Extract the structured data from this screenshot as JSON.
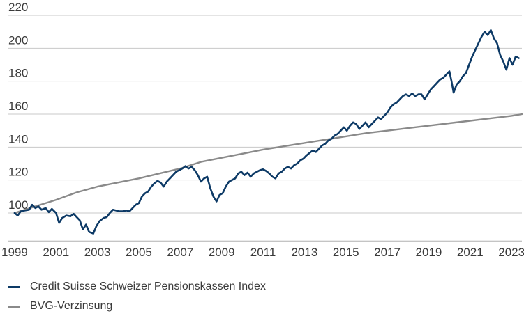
{
  "chart_data": {
    "type": "line",
    "title": "",
    "xlabel": "",
    "ylabel": "",
    "xlim": [
      1998.7,
      2023.5
    ],
    "ylim": [
      78,
      230
    ],
    "grid": true,
    "legend_placement": "bottom-left",
    "y_ticks": [
      "100",
      "120",
      "140",
      "160",
      "180",
      "200",
      "220"
    ],
    "x_ticks": [
      "1999",
      "2001",
      "2003",
      "2005",
      "2007",
      "2009",
      "2011",
      "2013",
      "2015",
      "2017",
      "2019",
      "2021",
      "2023"
    ],
    "series": [
      {
        "name": "Credit Suisse Schweizer Pensionskassen Index",
        "color": "#0d3a66",
        "points": [
          [
            1999.0,
            100
          ],
          [
            1999.15,
            98.5
          ],
          [
            1999.3,
            101
          ],
          [
            1999.5,
            101.5
          ],
          [
            1999.7,
            102
          ],
          [
            1999.85,
            105
          ],
          [
            2000.0,
            103
          ],
          [
            2000.15,
            104
          ],
          [
            2000.3,
            102
          ],
          [
            2000.5,
            103
          ],
          [
            2000.65,
            100.5
          ],
          [
            2000.8,
            102.5
          ],
          [
            2001.0,
            100
          ],
          [
            2001.15,
            94
          ],
          [
            2001.3,
            97
          ],
          [
            2001.5,
            98.5
          ],
          [
            2001.7,
            98
          ],
          [
            2001.85,
            99.5
          ],
          [
            2002.0,
            97.5
          ],
          [
            2002.15,
            95.5
          ],
          [
            2002.3,
            90
          ],
          [
            2002.45,
            93
          ],
          [
            2002.6,
            88.5
          ],
          [
            2002.8,
            87.5
          ],
          [
            2002.95,
            92
          ],
          [
            2003.1,
            95
          ],
          [
            2003.3,
            97
          ],
          [
            2003.45,
            97.5
          ],
          [
            2003.6,
            100
          ],
          [
            2003.75,
            102
          ],
          [
            2003.9,
            101.5
          ],
          [
            2004.05,
            101
          ],
          [
            2004.2,
            101
          ],
          [
            2004.4,
            101.5
          ],
          [
            2004.55,
            101
          ],
          [
            2004.7,
            103
          ],
          [
            2004.85,
            105
          ],
          [
            2005.0,
            106
          ],
          [
            2005.15,
            110
          ],
          [
            2005.3,
            112
          ],
          [
            2005.45,
            113
          ],
          [
            2005.6,
            116
          ],
          [
            2005.75,
            118
          ],
          [
            2005.9,
            119.5
          ],
          [
            2006.05,
            118.5
          ],
          [
            2006.2,
            116
          ],
          [
            2006.35,
            119
          ],
          [
            2006.5,
            121
          ],
          [
            2006.65,
            123
          ],
          [
            2006.8,
            125
          ],
          [
            2006.95,
            126
          ],
          [
            2007.1,
            127
          ],
          [
            2007.25,
            128.5
          ],
          [
            2007.4,
            127
          ],
          [
            2007.55,
            128
          ],
          [
            2007.7,
            126
          ],
          [
            2007.85,
            123
          ],
          [
            2008.0,
            119
          ],
          [
            2008.15,
            121
          ],
          [
            2008.3,
            122
          ],
          [
            2008.45,
            115
          ],
          [
            2008.6,
            110
          ],
          [
            2008.75,
            107
          ],
          [
            2008.9,
            111
          ],
          [
            2009.05,
            112
          ],
          [
            2009.2,
            116
          ],
          [
            2009.35,
            119
          ],
          [
            2009.5,
            120
          ],
          [
            2009.65,
            121
          ],
          [
            2009.8,
            124
          ],
          [
            2009.95,
            125
          ],
          [
            2010.1,
            123
          ],
          [
            2010.25,
            124.5
          ],
          [
            2010.4,
            122
          ],
          [
            2010.55,
            124
          ],
          [
            2010.7,
            125
          ],
          [
            2010.85,
            126
          ],
          [
            2011.0,
            126.5
          ],
          [
            2011.15,
            125.5
          ],
          [
            2011.3,
            124
          ],
          [
            2011.45,
            122
          ],
          [
            2011.6,
            121
          ],
          [
            2011.75,
            124
          ],
          [
            2011.9,
            125
          ],
          [
            2012.05,
            127
          ],
          [
            2012.2,
            128
          ],
          [
            2012.35,
            127
          ],
          [
            2012.5,
            129
          ],
          [
            2012.65,
            130
          ],
          [
            2012.8,
            132
          ],
          [
            2012.95,
            133
          ],
          [
            2013.1,
            135
          ],
          [
            2013.25,
            136.5
          ],
          [
            2013.4,
            138
          ],
          [
            2013.55,
            137
          ],
          [
            2013.7,
            139
          ],
          [
            2013.85,
            141
          ],
          [
            2014.0,
            142
          ],
          [
            2014.15,
            144
          ],
          [
            2014.3,
            145
          ],
          [
            2014.45,
            147
          ],
          [
            2014.6,
            148
          ],
          [
            2014.75,
            150
          ],
          [
            2014.9,
            152
          ],
          [
            2015.05,
            150
          ],
          [
            2015.2,
            153
          ],
          [
            2015.35,
            155
          ],
          [
            2015.5,
            154
          ],
          [
            2015.65,
            151
          ],
          [
            2015.8,
            153
          ],
          [
            2015.95,
            155
          ],
          [
            2016.1,
            152
          ],
          [
            2016.25,
            154
          ],
          [
            2016.4,
            156
          ],
          [
            2016.55,
            158
          ],
          [
            2016.7,
            157
          ],
          [
            2016.85,
            159
          ],
          [
            2017.0,
            161
          ],
          [
            2017.15,
            164
          ],
          [
            2017.3,
            166
          ],
          [
            2017.45,
            167
          ],
          [
            2017.6,
            169
          ],
          [
            2017.75,
            171
          ],
          [
            2017.9,
            172
          ],
          [
            2018.05,
            171
          ],
          [
            2018.2,
            172.5
          ],
          [
            2018.35,
            171
          ],
          [
            2018.5,
            172
          ],
          [
            2018.65,
            172
          ],
          [
            2018.8,
            169
          ],
          [
            2018.95,
            172
          ],
          [
            2019.1,
            175
          ],
          [
            2019.25,
            177
          ],
          [
            2019.4,
            179
          ],
          [
            2019.55,
            181
          ],
          [
            2019.7,
            182
          ],
          [
            2019.85,
            184
          ],
          [
            2020.0,
            186
          ],
          [
            2020.1,
            180
          ],
          [
            2020.2,
            173
          ],
          [
            2020.35,
            178
          ],
          [
            2020.5,
            180
          ],
          [
            2020.65,
            183
          ],
          [
            2020.8,
            185
          ],
          [
            2020.95,
            190
          ],
          [
            2021.1,
            195
          ],
          [
            2021.25,
            199
          ],
          [
            2021.4,
            203
          ],
          [
            2021.55,
            207
          ],
          [
            2021.7,
            210
          ],
          [
            2021.85,
            208
          ],
          [
            2022.0,
            211
          ],
          [
            2022.15,
            206
          ],
          [
            2022.3,
            203
          ],
          [
            2022.45,
            196
          ],
          [
            2022.6,
            192
          ],
          [
            2022.75,
            187
          ],
          [
            2022.9,
            194
          ],
          [
            2023.05,
            190
          ],
          [
            2023.2,
            195
          ],
          [
            2023.35,
            194
          ]
        ]
      },
      {
        "name": "BVG-Verzinsung",
        "color": "#8a8a8a",
        "points": [
          [
            1999.0,
            100
          ],
          [
            2000.0,
            104
          ],
          [
            2001.0,
            108
          ],
          [
            2002.0,
            112.5
          ],
          [
            2003.0,
            116
          ],
          [
            2004.0,
            118.5
          ],
          [
            2005.0,
            121
          ],
          [
            2006.0,
            124
          ],
          [
            2007.0,
            127
          ],
          [
            2008.0,
            131
          ],
          [
            2009.0,
            133.5
          ],
          [
            2010.0,
            136
          ],
          [
            2011.0,
            138.5
          ],
          [
            2012.0,
            140.5
          ],
          [
            2013.0,
            142.5
          ],
          [
            2014.0,
            144.5
          ],
          [
            2015.0,
            146.5
          ],
          [
            2016.0,
            148.5
          ],
          [
            2017.0,
            150
          ],
          [
            2018.0,
            151.5
          ],
          [
            2019.0,
            153
          ],
          [
            2020.0,
            154.5
          ],
          [
            2021.0,
            156
          ],
          [
            2022.0,
            157.5
          ],
          [
            2023.0,
            159
          ],
          [
            2023.5,
            160
          ]
        ]
      }
    ]
  }
}
